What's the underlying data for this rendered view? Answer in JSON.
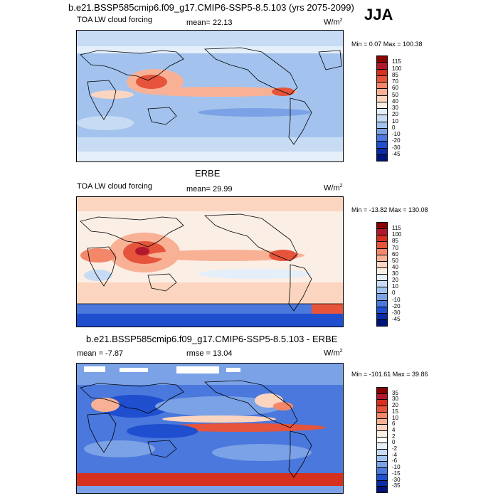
{
  "page": {
    "season": "JJA"
  },
  "panels": [
    {
      "title": "b.e21.BSSP585cmip6.f09_g17.CMIP6-SSP5-8.5.103 (yrs 2075-2099)",
      "left_label": "TOA LW cloud forcing",
      "center_label": "mean=  22.13",
      "unit": "W/m",
      "unit_sup": "2",
      "minmax": "Min =   0.07 Max = 100.38",
      "levels": [
        "115",
        "100",
        "85",
        "70",
        "60",
        "50",
        "40",
        "30",
        "20",
        "10",
        "0",
        "-10",
        "-20",
        "-30",
        "-45"
      ],
      "colors": [
        "#8b0000",
        "#b2182b",
        "#d6301f",
        "#e5543b",
        "#f4876a",
        "#f9b195",
        "#fcd5c0",
        "#fbeee5",
        "#e4effa",
        "#c7dcf4",
        "#a3c3ee",
        "#7ba2e6",
        "#4a78dc",
        "#1f4fcf",
        "#0b2aa8",
        "#00137a"
      ]
    },
    {
      "title": "ERBE",
      "left_label": "TOA LW cloud forcing",
      "center_label": "mean=  29.99",
      "unit": "W/m",
      "unit_sup": "2",
      "minmax": "Min = -13.82 Max = 130.08",
      "levels": [
        "115",
        "100",
        "85",
        "70",
        "60",
        "50",
        "40",
        "30",
        "20",
        "10",
        "0",
        "-10",
        "-20",
        "-30",
        "-45"
      ],
      "colors": [
        "#8b0000",
        "#b2182b",
        "#d6301f",
        "#e5543b",
        "#f4876a",
        "#f9b195",
        "#fcd5c0",
        "#fbeee5",
        "#e4effa",
        "#c7dcf4",
        "#a3c3ee",
        "#7ba2e6",
        "#4a78dc",
        "#1f4fcf",
        "#0b2aa8",
        "#00137a"
      ]
    },
    {
      "title": "b.e21.BSSP585cmip6.f09_g17.CMIP6-SSP5-8.5.103 - ERBE",
      "left_label": "mean =  -7.87",
      "center_label": "rmse =  13.04",
      "unit": "W/m",
      "unit_sup": "2",
      "minmax": "Min = -101.61 Max =  39.86",
      "levels": [
        "35",
        "30",
        "20",
        "15",
        "10",
        "6",
        "4",
        "2",
        "0",
        "-2",
        "-4",
        "-6",
        "-10",
        "-15",
        "-30",
        "-35"
      ],
      "colors": [
        "#8b0000",
        "#b2182b",
        "#d6301f",
        "#e5543b",
        "#f4876a",
        "#f9b195",
        "#fcd5c0",
        "#fbeee5",
        "#ffffff",
        "#e4effa",
        "#c7dcf4",
        "#a3c3ee",
        "#7ba2e6",
        "#4a78dc",
        "#1f4fcf",
        "#0b2aa8",
        "#00137a"
      ]
    }
  ]
}
